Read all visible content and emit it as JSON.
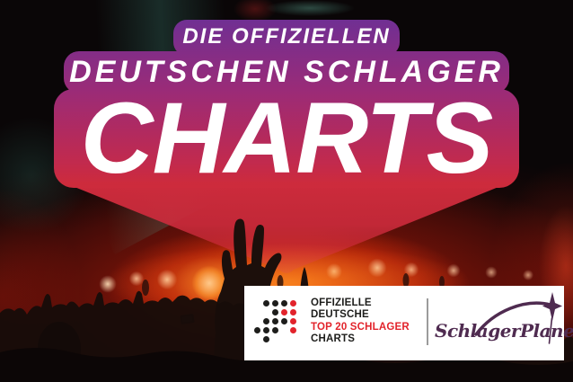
{
  "badge": {
    "kicker": "DIE OFFIZIELLEN",
    "line2": "DEUTSCHEN SCHLAGER",
    "main": "CHARTS",
    "text_color": "#ffffff",
    "gradient": [
      "#702f93",
      "#9b2b77",
      "#c22a4d",
      "#cd2b3c"
    ]
  },
  "partner_bar": {
    "background": "#ffffff",
    "charts_logo": {
      "dot_grid": [
        "-bbbr",
        "--brr",
        "-bbbr",
        "bbb-r",
        "-b---"
      ],
      "dot_black": "#1d1d1b",
      "dot_red": "#e2232b",
      "lines": [
        {
          "text": "OFFIZIELLE",
          "color": "#1d1d1b"
        },
        {
          "text": "DEUTSCHE",
          "color": "#1d1d1b"
        },
        {
          "text": "TOP 20 SCHLAGER",
          "color": "#e2232b"
        },
        {
          "text": "CHARTS",
          "color": "#1d1d1b"
        }
      ]
    },
    "partner_logo": {
      "text": "SchlagerPlanet",
      "color": "#4f2b50",
      "icon": "sparkle-star-with-orbit-swoosh"
    },
    "divider_color": "#9b9b9b"
  },
  "scene": {
    "background": "#0a0607",
    "glow_red": "#d2200a",
    "stage_light_warm": "#ffd9a8",
    "beam_teal": "#46a08a",
    "crowd_silhouette": "#170c09"
  }
}
